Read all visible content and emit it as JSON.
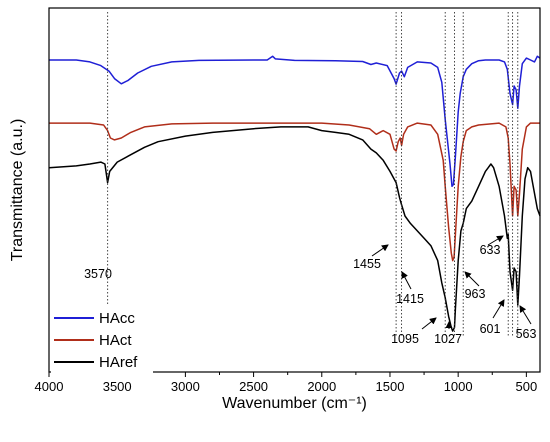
{
  "chart_data": {
    "type": "line",
    "xlabel": "Wavenumber (cm⁻¹)",
    "ylabel": "Transmittance (a.u.)",
    "xlim": [
      4000,
      400
    ],
    "xticks": [
      "4000",
      "3500",
      "3000",
      "2500",
      "2000",
      "1500",
      "1000",
      "500"
    ],
    "xtick_values": [
      4000,
      3500,
      3000,
      2500,
      2000,
      1500,
      1000,
      500
    ],
    "y_ticks_labeled": false,
    "legend_position": "bottom-left",
    "series": [
      {
        "name": "HAcc",
        "color": "#1f1fd6",
        "points": [
          [
            4000,
            72
          ],
          [
            3800,
            72
          ],
          [
            3700,
            71.5
          ],
          [
            3620,
            70.5
          ],
          [
            3560,
            69
          ],
          [
            3520,
            67
          ],
          [
            3470,
            65.6
          ],
          [
            3420,
            66.5
          ],
          [
            3350,
            68.5
          ],
          [
            3250,
            70.3
          ],
          [
            3100,
            71.5
          ],
          [
            2900,
            71.9
          ],
          [
            2500,
            72
          ],
          [
            2400,
            72
          ],
          [
            2360,
            73
          ],
          [
            2340,
            72.3
          ],
          [
            2200,
            71.9
          ],
          [
            1900,
            71.8
          ],
          [
            1700,
            71.6
          ],
          [
            1640,
            70.8
          ],
          [
            1600,
            71.2
          ],
          [
            1520,
            70.5
          ],
          [
            1470,
            67
          ],
          [
            1455,
            65.5
          ],
          [
            1430,
            68.5
          ],
          [
            1415,
            69
          ],
          [
            1395,
            67.5
          ],
          [
            1370,
            70
          ],
          [
            1300,
            71.5
          ],
          [
            1200,
            71.2
          ],
          [
            1150,
            70
          ],
          [
            1120,
            66
          ],
          [
            1095,
            56
          ],
          [
            1060,
            44
          ],
          [
            1045,
            38
          ],
          [
            1035,
            38.5
          ],
          [
            1020,
            46
          ],
          [
            1000,
            58
          ],
          [
            985,
            63
          ],
          [
            963,
            67.5
          ],
          [
            940,
            69.5
          ],
          [
            900,
            71
          ],
          [
            850,
            71.8
          ],
          [
            800,
            72
          ],
          [
            700,
            72
          ],
          [
            660,
            71.5
          ],
          [
            640,
            69.5
          ],
          [
            620,
            63
          ],
          [
            601,
            60
          ],
          [
            590,
            65
          ],
          [
            575,
            64
          ],
          [
            563,
            59
          ],
          [
            550,
            65
          ],
          [
            530,
            71
          ],
          [
            500,
            72.5
          ],
          [
            470,
            72
          ],
          [
            440,
            71.5
          ],
          [
            420,
            73
          ],
          [
            400,
            72.5
          ]
        ]
      },
      {
        "name": "HAct",
        "color": "#b02e1a",
        "points": [
          [
            4000,
            55
          ],
          [
            3700,
            55
          ],
          [
            3600,
            54.5
          ],
          [
            3570,
            53
          ],
          [
            3550,
            51
          ],
          [
            3520,
            50.5
          ],
          [
            3470,
            51
          ],
          [
            3400,
            52.5
          ],
          [
            3300,
            54
          ],
          [
            3100,
            54.8
          ],
          [
            2800,
            55
          ],
          [
            2400,
            55
          ],
          [
            2200,
            55
          ],
          [
            2000,
            55
          ],
          [
            1800,
            54.5
          ],
          [
            1650,
            53.5
          ],
          [
            1600,
            52
          ],
          [
            1550,
            53
          ],
          [
            1500,
            52
          ],
          [
            1470,
            48
          ],
          [
            1455,
            47.5
          ],
          [
            1440,
            50
          ],
          [
            1425,
            51
          ],
          [
            1415,
            49
          ],
          [
            1400,
            52
          ],
          [
            1370,
            54
          ],
          [
            1300,
            55
          ],
          [
            1200,
            54.5
          ],
          [
            1150,
            52
          ],
          [
            1110,
            45
          ],
          [
            1095,
            38
          ],
          [
            1070,
            27
          ],
          [
            1050,
            20
          ],
          [
            1040,
            18
          ],
          [
            1030,
            19
          ],
          [
            1020,
            25
          ],
          [
            1000,
            38
          ],
          [
            980,
            46
          ],
          [
            963,
            50
          ],
          [
            940,
            53
          ],
          [
            900,
            54
          ],
          [
            850,
            54.5
          ],
          [
            700,
            55
          ],
          [
            650,
            54
          ],
          [
            633,
            51
          ],
          [
            620,
            44
          ],
          [
            601,
            30
          ],
          [
            590,
            38
          ],
          [
            575,
            37
          ],
          [
            563,
            30
          ],
          [
            550,
            36
          ],
          [
            530,
            48
          ],
          [
            500,
            54
          ],
          [
            470,
            55
          ],
          [
            440,
            55
          ],
          [
            400,
            55
          ]
        ]
      },
      {
        "name": "HAref",
        "color": "#000000",
        "points": [
          [
            4000,
            43
          ],
          [
            3800,
            43.5
          ],
          [
            3700,
            44
          ],
          [
            3620,
            44.5
          ],
          [
            3590,
            44
          ],
          [
            3570,
            39
          ],
          [
            3555,
            42
          ],
          [
            3500,
            44.5
          ],
          [
            3400,
            46.5
          ],
          [
            3300,
            48.5
          ],
          [
            3200,
            50
          ],
          [
            3000,
            51.5
          ],
          [
            2800,
            52.5
          ],
          [
            2500,
            53.5
          ],
          [
            2300,
            54
          ],
          [
            2100,
            54
          ],
          [
            2000,
            53
          ],
          [
            1900,
            52.5
          ],
          [
            1800,
            52
          ],
          [
            1700,
            50.5
          ],
          [
            1640,
            48
          ],
          [
            1600,
            47
          ],
          [
            1550,
            45
          ],
          [
            1500,
            42
          ],
          [
            1455,
            39
          ],
          [
            1430,
            35
          ],
          [
            1415,
            33
          ],
          [
            1390,
            30
          ],
          [
            1350,
            28
          ],
          [
            1300,
            26
          ],
          [
            1250,
            24
          ],
          [
            1200,
            22
          ],
          [
            1150,
            18
          ],
          [
            1120,
            12
          ],
          [
            1095,
            8
          ],
          [
            1070,
            3
          ],
          [
            1050,
            0
          ],
          [
            1040,
            -1
          ],
          [
            1027,
            0
          ],
          [
            1020,
            5
          ],
          [
            1000,
            18
          ],
          [
            980,
            26
          ],
          [
            963,
            28
          ],
          [
            940,
            32
          ],
          [
            900,
            34
          ],
          [
            850,
            38
          ],
          [
            800,
            42
          ],
          [
            780,
            43
          ],
          [
            760,
            44
          ],
          [
            740,
            43
          ],
          [
            700,
            38
          ],
          [
            660,
            30
          ],
          [
            640,
            24
          ],
          [
            633,
            25
          ],
          [
            620,
            15
          ],
          [
            601,
            10
          ],
          [
            590,
            16
          ],
          [
            575,
            15
          ],
          [
            563,
            6
          ],
          [
            550,
            14
          ],
          [
            530,
            30
          ],
          [
            510,
            40
          ],
          [
            490,
            43
          ],
          [
            470,
            42
          ],
          [
            450,
            38
          ],
          [
            420,
            32
          ],
          [
            400,
            30
          ]
        ]
      }
    ],
    "annotations": [
      {
        "label": "3570",
        "line_x": 3570
      },
      {
        "label": "1455",
        "line_x": 1455
      },
      {
        "label": "1415",
        "line_x": 1415
      },
      {
        "label": "1095",
        "line_x": 1095
      },
      {
        "label": "1027",
        "line_x": 1027
      },
      {
        "label": "963",
        "line_x": 963
      },
      {
        "label": "633",
        "line_x": 633
      },
      {
        "label": "601",
        "line_x": 601
      },
      {
        "label": "563",
        "line_x": 563
      }
    ]
  }
}
